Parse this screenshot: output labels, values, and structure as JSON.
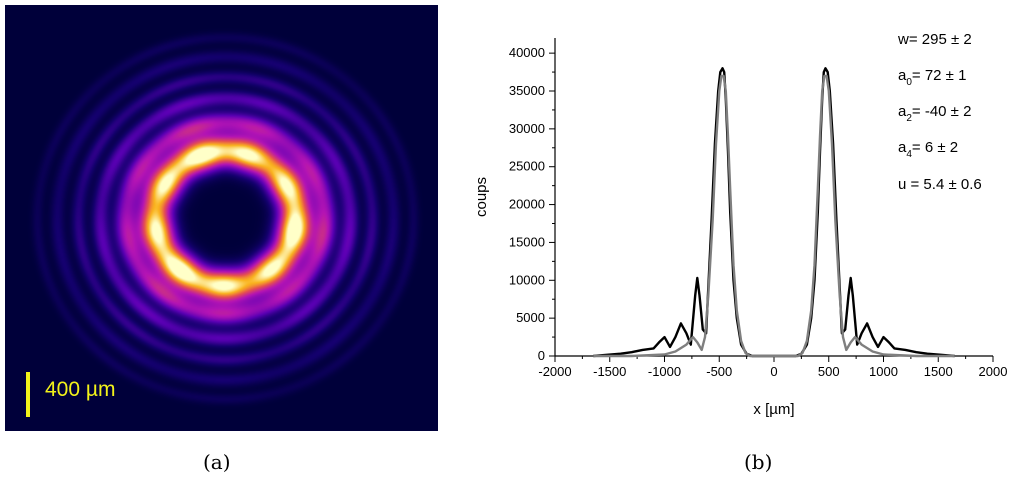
{
  "panel_a": {
    "scale_label": "400 µm",
    "caption": "(a)",
    "colors": {
      "background": "#00003a",
      "scale_bar": "#f2f21a"
    }
  },
  "panel_b": {
    "caption": "(b)",
    "params": [
      {
        "main": "w= 295 ± 2",
        "sub": ""
      },
      {
        "main": "a",
        "sub": "0",
        "rest": "= 72  ± 1"
      },
      {
        "main": "a",
        "sub": "2",
        "rest": "= -40 ± 2"
      },
      {
        "main": "a",
        "sub": "4",
        "rest": "=   6  ± 2"
      },
      {
        "main": "u = 5.4 ± 0.6",
        "sub": ""
      }
    ]
  },
  "chart_data": {
    "type": "line",
    "xlabel": "x [µm]",
    "ylabel": "coups",
    "xlim": [
      -2000,
      2000
    ],
    "ylim": [
      0,
      42000
    ],
    "xticks": [
      -2000,
      -1500,
      -1000,
      -500,
      0,
      500,
      1000,
      1500,
      2000
    ],
    "yticks": [
      0,
      5000,
      10000,
      15000,
      20000,
      25000,
      30000,
      35000,
      40000
    ],
    "grid": false,
    "series": [
      {
        "color": "#000000",
        "x": [
          -1650,
          -1400,
          -1300,
          -1200,
          -1100,
          -1050,
          -1000,
          -950,
          -900,
          -850,
          -800,
          -760,
          -720,
          -700,
          -680,
          -650,
          -620,
          -600,
          -570,
          -540,
          -510,
          -490,
          -470,
          -455,
          -440,
          -420,
          -400,
          -370,
          -340,
          -300,
          -250,
          -200,
          -150,
          0,
          150,
          200,
          250,
          300,
          340,
          370,
          400,
          420,
          440,
          455,
          470,
          490,
          510,
          540,
          570,
          600,
          620,
          650,
          680,
          700,
          720,
          760,
          800,
          850,
          900,
          950,
          1000,
          1050,
          1100,
          1200,
          1300,
          1400,
          1650
        ],
        "y": [
          0,
          300,
          500,
          800,
          1000,
          1800,
          2500,
          1200,
          2500,
          4300,
          3000,
          1500,
          8000,
          10300,
          8000,
          3500,
          3000,
          9000,
          18000,
          28000,
          35000,
          37500,
          38000,
          37500,
          34000,
          27000,
          19000,
          10000,
          5000,
          1500,
          300,
          0,
          0,
          0,
          0,
          0,
          300,
          1500,
          5000,
          10000,
          19000,
          27000,
          34000,
          37500,
          38000,
          37500,
          35000,
          28000,
          18000,
          9000,
          3000,
          3500,
          8000,
          10300,
          8000,
          1500,
          3000,
          4300,
          2500,
          1200,
          2500,
          1800,
          1000,
          800,
          500,
          300,
          0
        ]
      },
      {
        "color": "#7f7f7f",
        "x": [
          -1650,
          -1300,
          -1000,
          -900,
          -800,
          -740,
          -700,
          -660,
          -630,
          -600,
          -560,
          -530,
          -500,
          -480,
          -460,
          -440,
          -420,
          -400,
          -370,
          -340,
          -300,
          -260,
          -220,
          -180,
          0,
          180,
          220,
          260,
          300,
          340,
          370,
          400,
          420,
          440,
          460,
          480,
          500,
          530,
          560,
          600,
          630,
          660,
          700,
          740,
          800,
          900,
          1000,
          1300,
          1650
        ],
        "y": [
          0,
          0,
          200,
          600,
          1500,
          2500,
          1800,
          800,
          2500,
          8000,
          18000,
          28000,
          35000,
          37000,
          37000,
          35000,
          29000,
          22000,
          12000,
          6000,
          2000,
          400,
          0,
          0,
          0,
          0,
          0,
          400,
          2000,
          6000,
          12000,
          22000,
          29000,
          35000,
          37000,
          37000,
          35000,
          28000,
          18000,
          8000,
          2500,
          800,
          1800,
          2500,
          1500,
          600,
          200,
          0,
          0
        ]
      }
    ]
  }
}
